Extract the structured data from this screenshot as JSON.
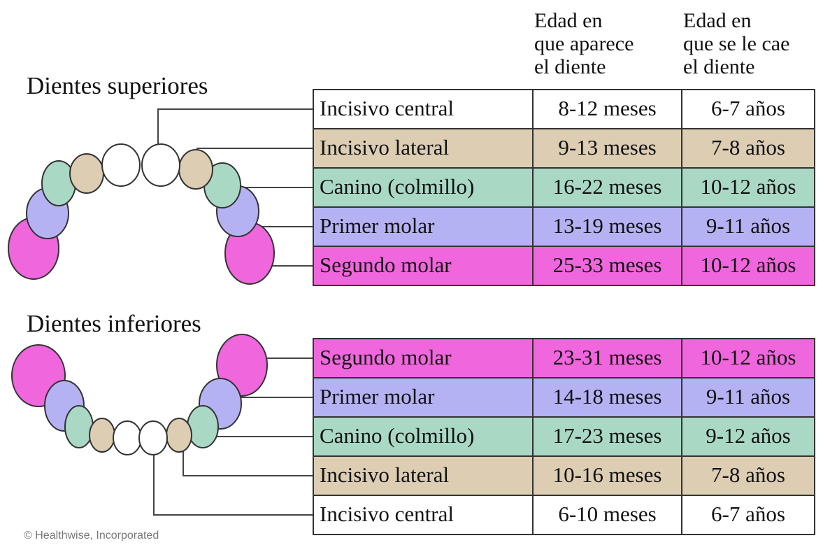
{
  "headers": {
    "appear": [
      "Edad en",
      "que aparece",
      "el diente"
    ],
    "fall": [
      "Edad en",
      "que se le cae",
      "el diente"
    ]
  },
  "upper": {
    "title": "Dientes superiores",
    "rows": [
      {
        "name": "Incisivo central",
        "appear": "8-12 meses",
        "fall": "6-7 años",
        "color": "#ffffff"
      },
      {
        "name": "Incisivo lateral",
        "appear": "9-13 meses",
        "fall": "7-8 años",
        "color": "#dccdb3"
      },
      {
        "name": "Canino (colmillo)",
        "appear": "16-22 meses",
        "fall": "10-12 años",
        "color": "#a9d9c5"
      },
      {
        "name": "Primer molar",
        "appear": "13-19 meses",
        "fall": "9-11 años",
        "color": "#b4b2f2"
      },
      {
        "name": "Segundo molar",
        "appear": "25-33 meses",
        "fall": "10-12 años",
        "color": "#f066dc"
      }
    ]
  },
  "lower": {
    "title": "Dientes inferiores",
    "rows": [
      {
        "name": "Segundo molar",
        "appear": "23-31 meses",
        "fall": "10-12 años",
        "color": "#f066dc"
      },
      {
        "name": "Primer molar",
        "appear": "14-18 meses",
        "fall": "9-11 años",
        "color": "#b4b2f2"
      },
      {
        "name": "Canino (colmillo)",
        "appear": "17-23 meses",
        "fall": "9-12 años",
        "color": "#a9d9c5"
      },
      {
        "name": "Incisivo lateral",
        "appear": "10-16 meses",
        "fall": "7-8 años",
        "color": "#dccdb3"
      },
      {
        "name": "Incisivo central",
        "appear": "6-10 meses",
        "fall": "6-7 años",
        "color": "#ffffff"
      }
    ]
  },
  "credit": "© Healthwise, Incorporated"
}
